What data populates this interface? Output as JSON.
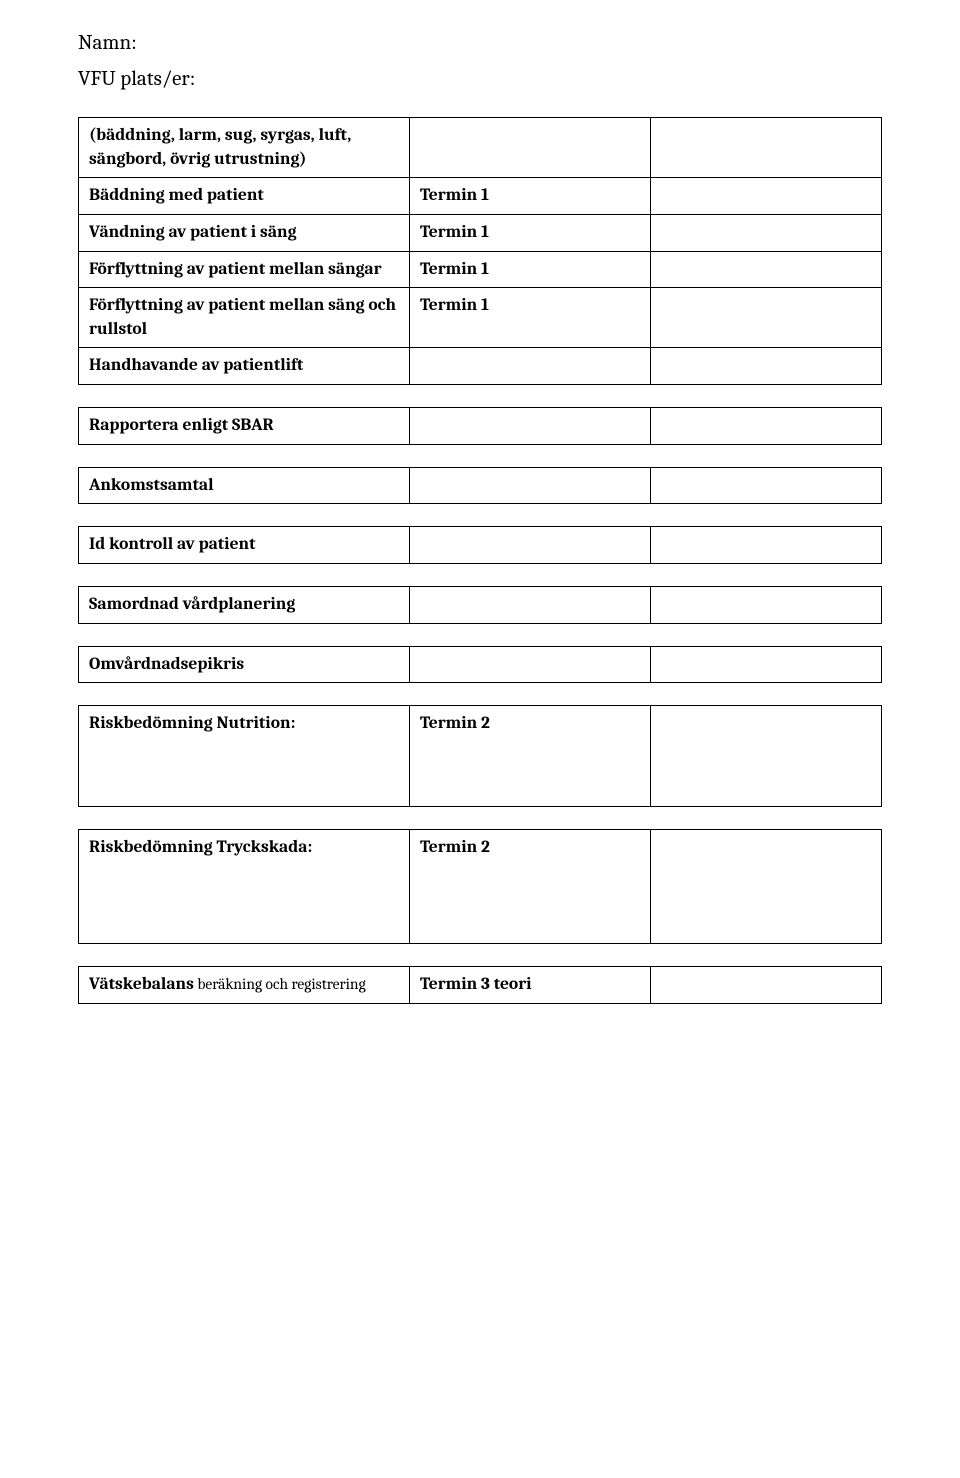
{
  "header": {
    "line1": "Namn:",
    "line2": "VFU plats/er:"
  },
  "rows": [
    {
      "label_html": "(bäddning, larm, sug, syrgas, luft, sängbord, övrig utrustning)",
      "term": "",
      "note": "",
      "label_bold": true
    },
    {
      "label_html": "Bäddning med patient",
      "term": "Termin 1",
      "note": "",
      "label_bold": true
    },
    {
      "label_html": "Vändning av patient i säng",
      "term": "Termin 1",
      "note": "",
      "label_bold": true
    },
    {
      "label_html": "Förflyttning av patient mellan sängar",
      "term": "Termin 1",
      "note": "",
      "label_bold": true
    },
    {
      "label_html": "Förflyttning av patient mellan säng och rullstol",
      "term": "Termin 1",
      "note": "",
      "label_bold": true
    },
    {
      "label_html": "Handhavande av patientlift",
      "term": "",
      "note": "",
      "label_bold": true
    },
    {
      "label_html": "Rapportera enligt SBAR",
      "term": "",
      "note": "",
      "label_bold": true
    },
    {
      "label_html": "Ankomstsamtal",
      "term": "",
      "note": "",
      "label_bold": true
    },
    {
      "label_html": "Id kontroll av patient",
      "term": "",
      "note": "",
      "label_bold": true
    },
    {
      "label_html": "Samordnad vårdplanering",
      "term": "",
      "note": "",
      "label_bold": true
    },
    {
      "label_html": "Omvårdnadsepikris",
      "term": "",
      "note": "",
      "label_bold": true
    },
    {
      "label_html": "Riskbedömning Nutrition:",
      "term": "Termin 2",
      "note": "",
      "label_bold": true,
      "extra_pad": "tall"
    },
    {
      "label_html": "Riskbedömning Tryckskada:",
      "term": "Termin 2",
      "note": "",
      "label_bold": true,
      "extra_pad": "xtall"
    }
  ],
  "last_row": {
    "label_main": "Vätskebalans",
    "label_sub": " beräkning och registrering",
    "term": "Termin 3 teori",
    "note": ""
  },
  "colors": {
    "text": "#000000",
    "border": "#000000",
    "background": "#ffffff"
  }
}
